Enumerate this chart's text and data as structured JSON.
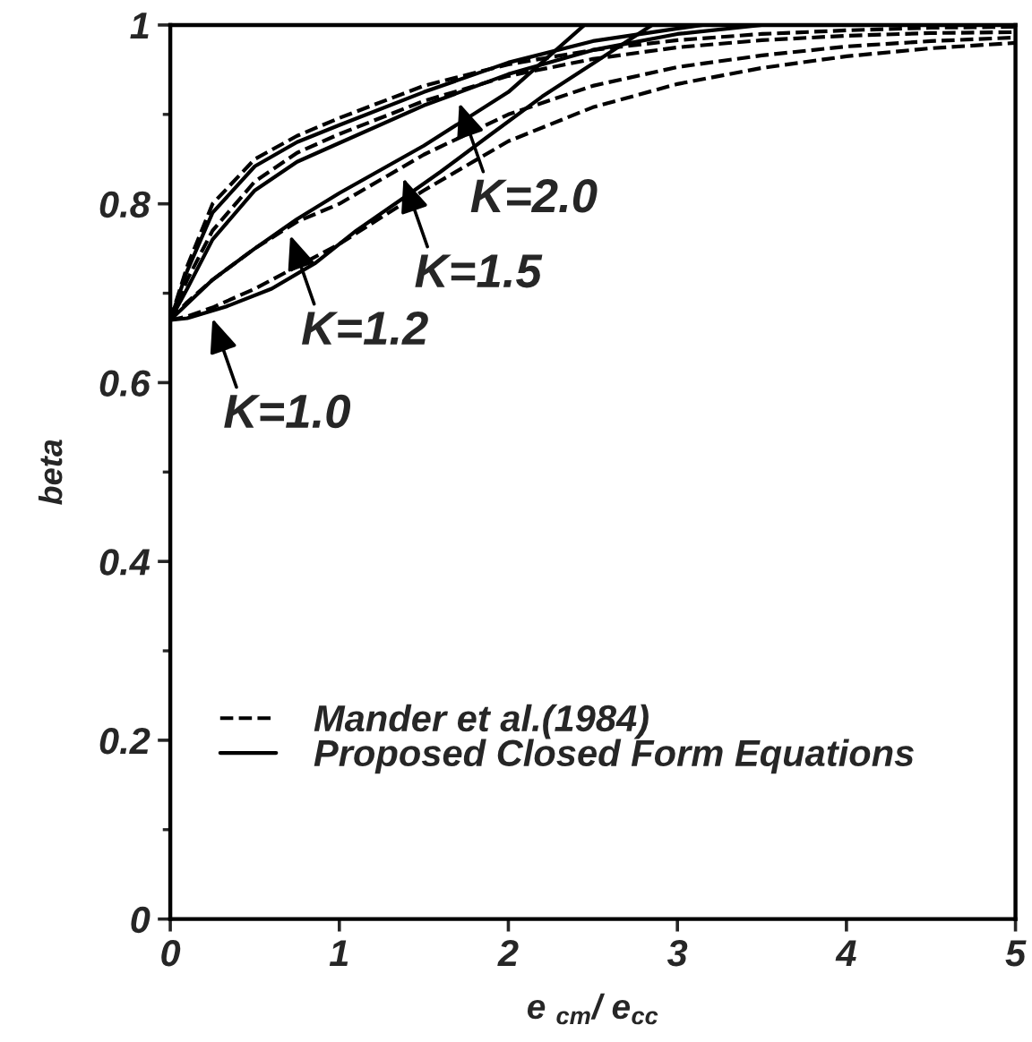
{
  "chart_data": {
    "type": "line",
    "xlabel": "e $_{cm}$/ e$_{cc}$",
    "ylabel": "beta",
    "series": [
      {
        "name": "Mander et al.(1984)",
        "color": "#000000",
        "line_style": "dashed",
        "x": [
          0,
          0.1,
          0.25,
          0.5,
          0.75,
          1,
          1.5,
          2,
          2.5,
          3,
          3.5,
          4,
          4.5,
          5
        ],
        "values": [
          0.67,
          0.73,
          0.8,
          0.85,
          0.876,
          0.896,
          0.932,
          0.956,
          0.972,
          0.983,
          0.99,
          0.994,
          0.997,
          0.998
        ]
      },
      {
        "name": "Proposed Closed Form Equations",
        "color": "#000000",
        "line_style": "solid",
        "x": [
          0,
          0.1,
          0.25,
          0.5,
          0.75,
          1,
          1.5,
          2,
          2.5,
          3,
          3.15
        ],
        "values": [
          0.67,
          0.725,
          0.79,
          0.842,
          0.869,
          0.888,
          0.925,
          0.958,
          0.982,
          0.996,
          1
        ]
      },
      {
        "color": "#000000",
        "line_style": "dashed",
        "x": [
          0,
          0.1,
          0.25,
          0.5,
          0.75,
          1,
          1.5,
          2,
          2.5,
          3,
          3.5,
          4,
          4.5,
          5
        ],
        "values": [
          0.67,
          0.715,
          0.77,
          0.825,
          0.857,
          0.878,
          0.915,
          0.943,
          0.962,
          0.975,
          0.983,
          0.988,
          0.991,
          0.992
        ]
      },
      {
        "color": "#000000",
        "line_style": "solid",
        "x": [
          0,
          0.1,
          0.25,
          0.5,
          0.75,
          1,
          1.5,
          2,
          2.5,
          3,
          3.5
        ],
        "values": [
          0.67,
          0.705,
          0.76,
          0.815,
          0.847,
          0.868,
          0.91,
          0.945,
          0.972,
          0.99,
          1
        ]
      },
      {
        "color": "#000000",
        "line_style": "dashed",
        "x": [
          0,
          0.1,
          0.25,
          0.5,
          0.75,
          1,
          1.5,
          2,
          2.5,
          3,
          3.5,
          4,
          4.5,
          5
        ],
        "values": [
          0.67,
          0.69,
          0.715,
          0.75,
          0.78,
          0.8,
          0.855,
          0.9,
          0.932,
          0.953,
          0.966,
          0.976,
          0.982,
          0.986
        ]
      },
      {
        "color": "#000000",
        "line_style": "solid",
        "x": [
          0,
          0.25,
          0.5,
          0.75,
          1,
          1.5,
          2,
          2.45
        ],
        "values": [
          0.67,
          0.715,
          0.75,
          0.783,
          0.812,
          0.865,
          0.925,
          1
        ]
      },
      {
        "color": "#000000",
        "line_style": "dashed",
        "x": [
          0,
          0.1,
          0.25,
          0.5,
          0.75,
          1,
          1.5,
          2,
          2.5,
          3,
          3.5,
          4,
          4.5,
          5
        ],
        "values": [
          0.67,
          0.674,
          0.684,
          0.705,
          0.73,
          0.755,
          0.815,
          0.87,
          0.908,
          0.934,
          0.952,
          0.965,
          0.974,
          0.98
        ]
      },
      {
        "color": "#000000",
        "line_style": "solid",
        "x": [
          0,
          0.1,
          0.33,
          0.6,
          0.86,
          1.1,
          1.39,
          1.6,
          1.87,
          2.2,
          2.5,
          2.85
        ],
        "values": [
          0.67,
          0.672,
          0.685,
          0.705,
          0.734,
          0.77,
          0.808,
          0.836,
          0.874,
          0.92,
          0.957,
          1
        ]
      }
    ],
    "xlim": [
      0,
      5
    ],
    "ylim": [
      0,
      1
    ],
    "xticks": [
      0,
      1,
      2,
      3,
      4,
      5
    ],
    "yticks": [
      0,
      0.2,
      0.4,
      0.6,
      0.8,
      1
    ],
    "grid": false,
    "legend": "bottom",
    "annotations": [
      {
        "text": "K=1.0",
        "x": 0.24,
        "y": 0.677
      },
      {
        "text": "K=1.2",
        "x": 0.7,
        "y": 0.77
      },
      {
        "text": "K=1.5",
        "x": 1.37,
        "y": 0.834
      },
      {
        "text": "K=2.0",
        "x": 1.7,
        "y": 0.918
      }
    ]
  }
}
